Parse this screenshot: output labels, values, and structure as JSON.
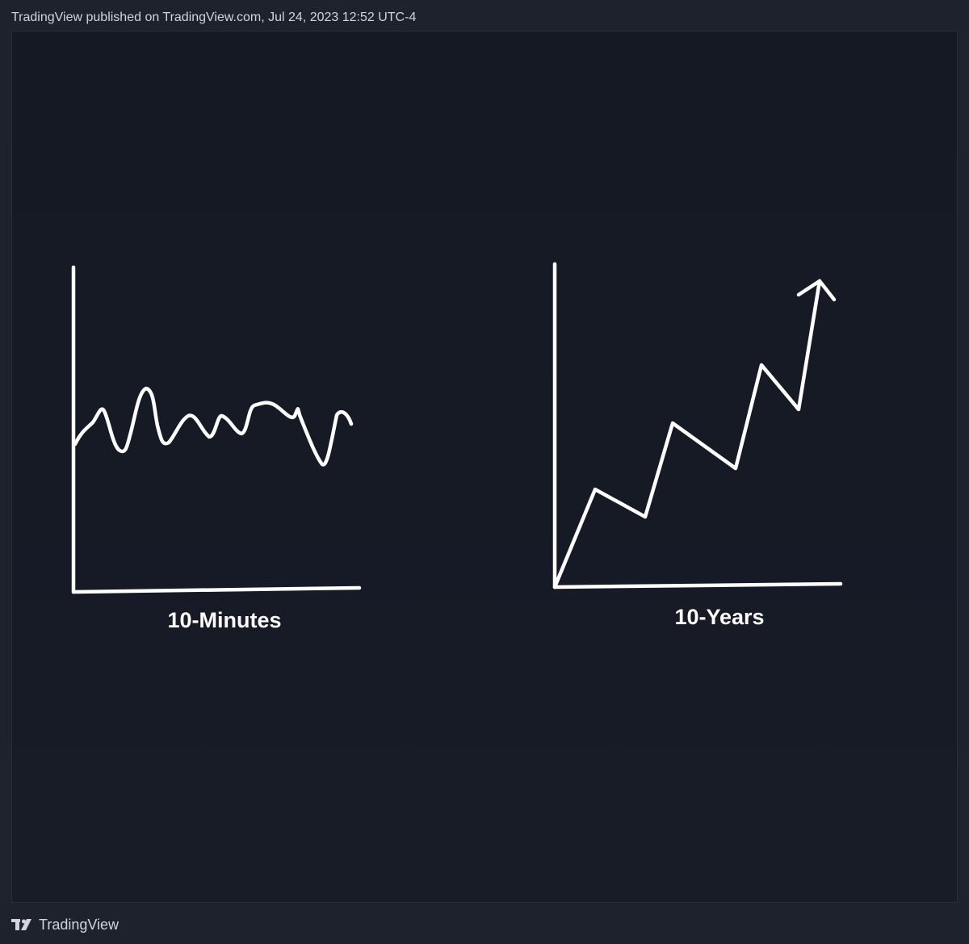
{
  "header": {
    "publish_line": "TradingView published on TradingView.com, Jul 24, 2023 12:52 UTC-4"
  },
  "sketches": [
    {
      "label": "10-Minutes",
      "shape": "choppy sideways line"
    },
    {
      "label": "10-Years",
      "shape": "zigzag uptrend with arrow"
    }
  ],
  "footer": {
    "logo_icon": "tradingview-logo-icon",
    "brand": "TradingView"
  },
  "colors": {
    "page_background": "#1e222d",
    "canvas_background": "#161a25",
    "stroke": "#ffffff",
    "text": "#d1d4dc"
  }
}
